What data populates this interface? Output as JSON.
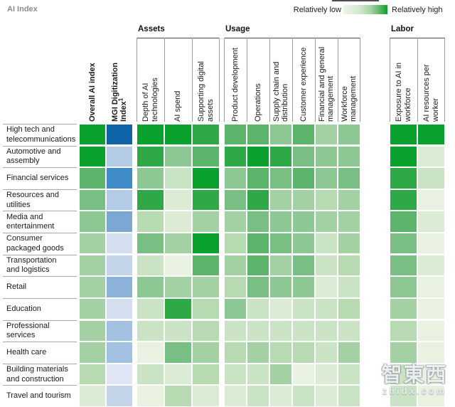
{
  "title": "AI Index",
  "legend": {
    "low_label": "Relatively low",
    "high_label": "Relatively high",
    "gradient_start": "#eef4e9",
    "gradient_end": "#0ba12e"
  },
  "watermark": {
    "brand": "智東西",
    "domain": "zhidx.com"
  },
  "chart_data": {
    "type": "heatmap",
    "title": "AI Index",
    "legend": {
      "low": "Relatively low",
      "high": "Relatively high"
    },
    "value_scale": "palette index 0 = relatively low ... 9 = relatively high",
    "palette_green": [
      "#e9f2e1",
      "#dbebd4",
      "#cbe3c5",
      "#b7dab3",
      "#a3d1a4",
      "#8dc794",
      "#79be83",
      "#5bb46a",
      "#2fa847",
      "#0aa12e"
    ],
    "palette_blue": [
      "#dfe5f2",
      "#d3deee",
      "#c4d5ea",
      "#b4cbe5",
      "#a2c0e0",
      "#8db2d9",
      "#7aa8d3",
      "#3f8cc8",
      "#2277b6",
      "#0f64a7"
    ],
    "column_groups": [
      {
        "label": "Assets",
        "columns": [
          2,
          3,
          4
        ]
      },
      {
        "label": "Usage",
        "columns": [
          5,
          6,
          7,
          8,
          9,
          10
        ]
      },
      {
        "label": "Labor",
        "columns": [
          11,
          12
        ]
      }
    ],
    "columns": [
      {
        "label": "Overall AI index",
        "bold": true,
        "scale": "green"
      },
      {
        "label": "MGI Digitization Index",
        "superscript": "1",
        "bold": true,
        "scale": "blue"
      },
      {
        "label": "Depth of AI\ntechnologies",
        "scale": "green"
      },
      {
        "label": "AI spend",
        "scale": "green"
      },
      {
        "label": "Supporting digital\nassets",
        "scale": "green"
      },
      {
        "label": "Product development",
        "scale": "green"
      },
      {
        "label": "Operations",
        "scale": "green"
      },
      {
        "label": "Supply chain and\ndistribution",
        "scale": "green"
      },
      {
        "label": "Customer experience",
        "scale": "green"
      },
      {
        "label": "Financial and general\nmanagement",
        "scale": "green"
      },
      {
        "label": "Workforce\nmanagement",
        "scale": "green"
      },
      {
        "label": "Exposure to AI in\nworkforce",
        "scale": "green"
      },
      {
        "label": "AI resources per\nworker",
        "scale": "green"
      }
    ],
    "rows": [
      "High tech and\ntelecommunications",
      "Automotive and\nassembly",
      "Financial services",
      "Resources and\nutilities",
      "Media and\nentertainment",
      "Consumer\npackaged goods",
      "Transportation\nand logistics",
      "Retail",
      "Education",
      "Professional\nservices",
      "Health care",
      "Building materials\nand construction",
      "Travel and tourism"
    ],
    "values": [
      [
        9,
        9,
        9,
        9,
        8,
        7,
        7,
        5,
        7,
        4,
        5,
        9,
        9
      ],
      [
        9,
        3,
        8,
        5,
        7,
        8,
        9,
        8,
        6,
        5,
        5,
        9,
        1
      ],
      [
        7,
        7,
        5,
        2,
        9,
        5,
        7,
        6,
        7,
        5,
        6,
        8,
        2
      ],
      [
        6,
        3,
        8,
        1,
        8,
        6,
        8,
        4,
        4,
        3,
        4,
        8,
        0
      ],
      [
        5,
        6,
        3,
        1,
        4,
        4,
        6,
        5,
        5,
        4,
        4,
        7,
        1
      ],
      [
        4,
        1,
        6,
        4,
        9,
        3,
        7,
        6,
        5,
        2,
        4,
        6,
        0
      ],
      [
        4,
        2,
        2,
        0,
        7,
        4,
        7,
        4,
        6,
        2,
        3,
        6,
        1
      ],
      [
        4,
        5,
        5,
        4,
        4,
        3,
        6,
        5,
        5,
        1,
        2,
        5,
        0
      ],
      [
        4,
        1,
        2,
        8,
        3,
        5,
        2,
        1,
        2,
        2,
        3,
        4,
        0
      ],
      [
        4,
        4,
        2,
        2,
        3,
        2,
        2,
        2,
        2,
        2,
        2,
        3,
        0
      ],
      [
        4,
        4,
        0,
        6,
        4,
        3,
        4,
        3,
        3,
        2,
        4,
        4,
        0
      ],
      [
        3,
        0,
        2,
        1,
        3,
        2,
        2,
        4,
        0,
        1,
        2,
        2,
        0
      ],
      [
        1,
        2,
        0,
        3,
        1,
        1,
        2,
        1,
        2,
        1,
        2,
        2,
        0
      ]
    ]
  }
}
